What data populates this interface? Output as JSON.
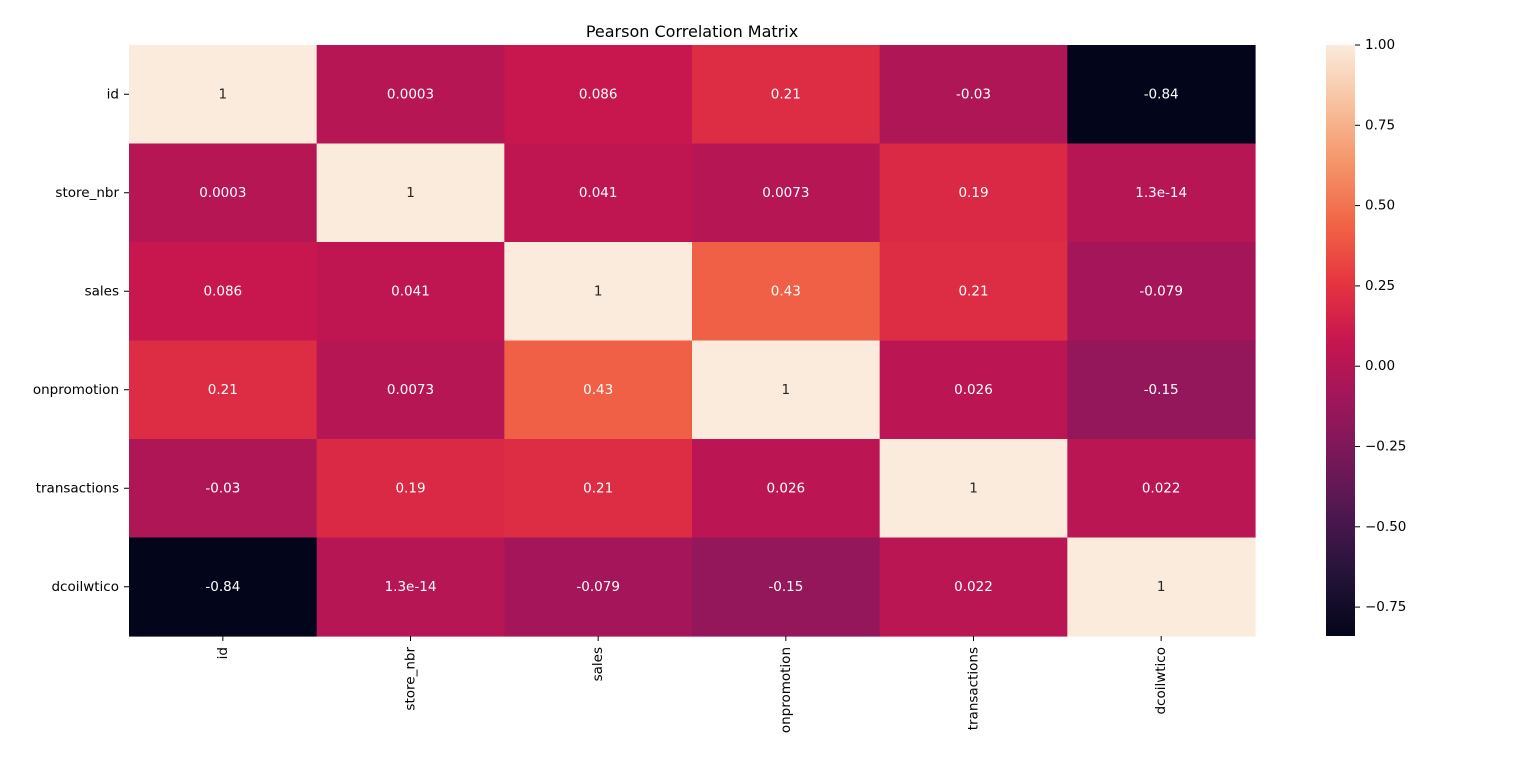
{
  "chart_data": {
    "type": "heatmap",
    "title": "Pearson Correlation Matrix",
    "xlabel": "",
    "ylabel": "",
    "rows": [
      "id",
      "store_nbr",
      "sales",
      "onpromotion",
      "transactions",
      "dcoilwtico"
    ],
    "cols": [
      "id",
      "store_nbr",
      "sales",
      "onpromotion",
      "transactions",
      "dcoilwtico"
    ],
    "values": [
      [
        1,
        0.0003,
        0.086,
        0.21,
        -0.03,
        -0.84
      ],
      [
        0.0003,
        1,
        0.041,
        0.0073,
        0.19,
        1.3e-14
      ],
      [
        0.086,
        0.041,
        1,
        0.43,
        0.21,
        -0.079
      ],
      [
        0.21,
        0.0073,
        0.43,
        1,
        0.026,
        -0.15
      ],
      [
        -0.03,
        0.19,
        0.21,
        0.026,
        1,
        0.022
      ],
      [
        -0.84,
        1.3e-14,
        -0.079,
        -0.15,
        0.022,
        1
      ]
    ],
    "annotations": [
      [
        "1",
        "0.0003",
        "0.086",
        "0.21",
        "-0.03",
        "-0.84"
      ],
      [
        "0.0003",
        "1",
        "0.041",
        "0.0073",
        "0.19",
        "1.3e-14"
      ],
      [
        "0.086",
        "0.041",
        "1",
        "0.43",
        "0.21",
        "-0.079"
      ],
      [
        "0.21",
        "0.0073",
        "0.43",
        "1",
        "0.026",
        "-0.15"
      ],
      [
        "-0.03",
        "0.19",
        "0.21",
        "0.026",
        "1",
        "0.022"
      ],
      [
        "-0.84",
        "1.3e-14",
        "-0.079",
        "-0.15",
        "0.022",
        "1"
      ]
    ],
    "colormap": "rocket",
    "vmin": -0.84,
    "vmax": 1,
    "colorbar_ticks": [
      1.0,
      0.75,
      0.5,
      0.25,
      0.0,
      -0.25,
      -0.5,
      -0.75
    ],
    "colorbar_tick_labels": [
      "1.00",
      "0.75",
      "0.50",
      "0.25",
      "0.00",
      "−0.25",
      "−0.50",
      "−0.75"
    ],
    "x_tick_rotation": "vertical"
  }
}
